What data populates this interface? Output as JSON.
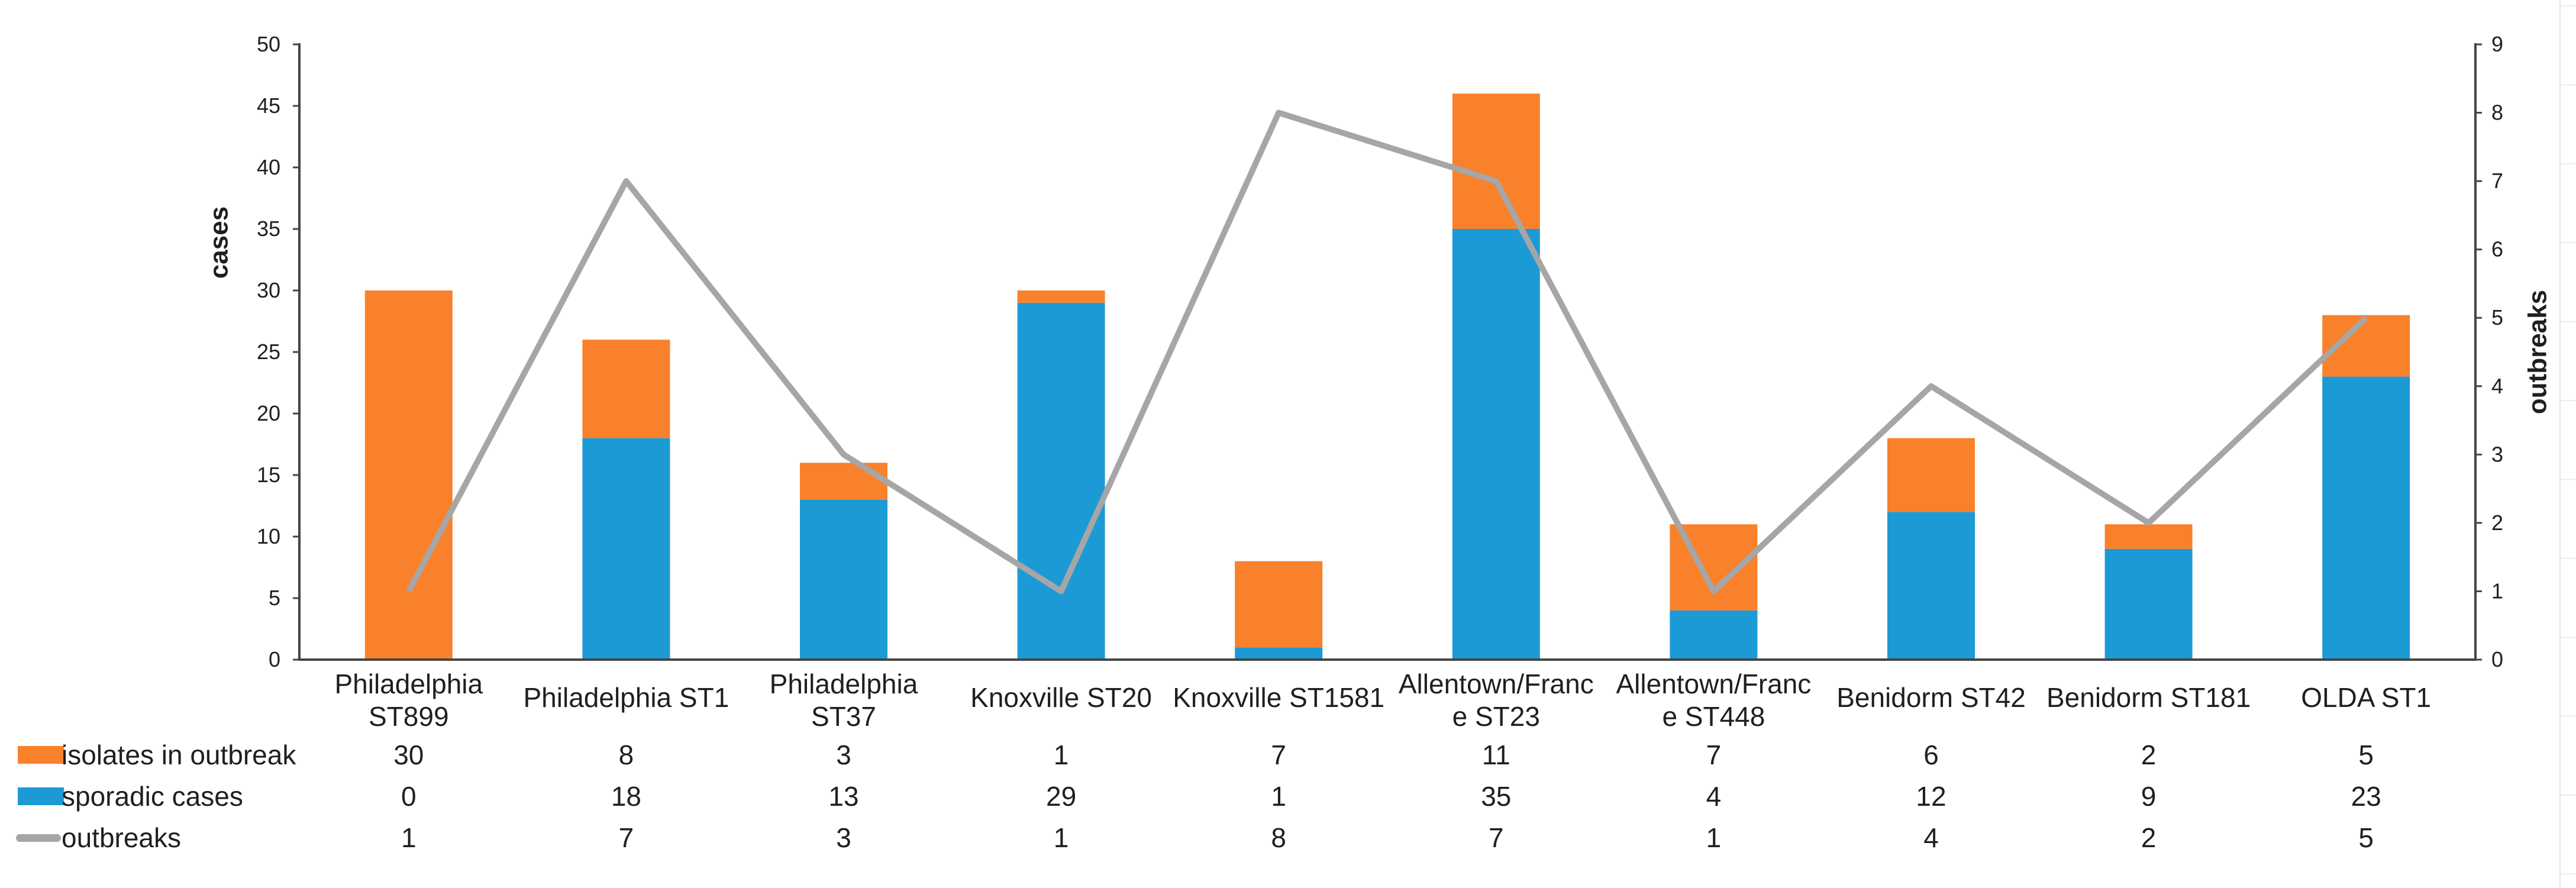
{
  "chart_data": {
    "type": "bar",
    "subtype": "stacked-column-with-line-combo",
    "title": "",
    "background": "#FFFFFF",
    "grid": false,
    "categories": [
      "Philadelphia ST899",
      "Philadelphia ST1",
      "Philadelphia ST37",
      "Knoxville ST20",
      "Knoxville ST1581",
      "Allentown/Franc e ST23",
      "Allentown/Franc e ST448",
      "Benidorm ST42",
      "Benidorm ST181",
      "OLDA ST1"
    ],
    "category_label_lines": [
      [
        "Philadelphia",
        "ST899"
      ],
      [
        "Philadelphia ST1"
      ],
      [
        "Philadelphia",
        "ST37"
      ],
      [
        "Knoxville ST20"
      ],
      [
        "Knoxville ST1581"
      ],
      [
        "Allentown/Franc",
        "e ST23"
      ],
      [
        "Allentown/Franc",
        "e ST448"
      ],
      [
        "Benidorm ST42"
      ],
      [
        "Benidorm ST181"
      ],
      [
        "OLDA ST1"
      ]
    ],
    "series": [
      {
        "name": "isolates in outbreak",
        "type": "bar",
        "stack_position": "top",
        "axis": "left",
        "color": "#F9812B",
        "values": [
          30,
          8,
          3,
          1,
          7,
          11,
          7,
          6,
          2,
          5
        ]
      },
      {
        "name": "sporadic cases",
        "type": "bar",
        "stack_position": "bottom",
        "axis": "left",
        "color": "#1C9AD6",
        "values": [
          0,
          18,
          13,
          29,
          1,
          35,
          4,
          12,
          9,
          23
        ]
      },
      {
        "name": "outbreaks",
        "type": "line",
        "axis": "right",
        "color": "#A6A6A6",
        "values": [
          1,
          7,
          3,
          1,
          8,
          7,
          1,
          4,
          2,
          5
        ]
      }
    ],
    "left_axis": {
      "title": "cases",
      "min": 0,
      "max": 50,
      "step": 5
    },
    "right_axis": {
      "title": "outbreaks",
      "min": 0,
      "max": 9,
      "step": 1
    },
    "legend_table": {
      "position": "bottom",
      "row_labels": [
        "isolates in outbreak",
        "sporadic cases",
        "outbreaks"
      ]
    },
    "colors": {
      "axis_line": "#444444",
      "text": "#1f1f1f",
      "faint_gridline": "#E2E2E2"
    }
  }
}
